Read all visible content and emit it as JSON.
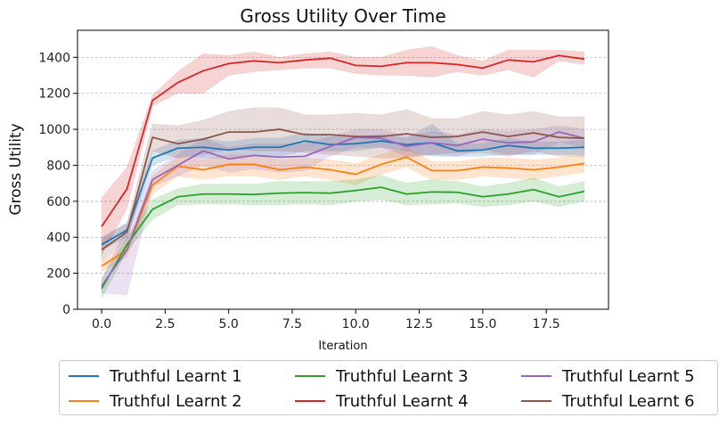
{
  "chart_data": {
    "type": "line",
    "title": "Gross Utility Over Time",
    "xlabel": "Iteration",
    "ylabel": "Gross Utility",
    "xlim": [
      -0.95,
      19.95
    ],
    "ylim": [
      0,
      1550
    ],
    "x_ticks": [
      "0.0",
      "2.5",
      "5.0",
      "7.5",
      "10.0",
      "12.5",
      "15.0",
      "17.5"
    ],
    "x_tick_values": [
      0,
      2.5,
      5,
      7.5,
      10,
      12.5,
      15,
      17.5
    ],
    "y_ticks": [
      "0",
      "200",
      "400",
      "600",
      "800",
      "1000",
      "1200",
      "1400"
    ],
    "y_tick_values": [
      0,
      200,
      400,
      600,
      800,
      1000,
      1200,
      1400
    ],
    "grid": "horizontal dashed",
    "legend_position": "bottom, outside",
    "x": [
      0,
      1,
      2,
      3,
      4,
      5,
      6,
      7,
      8,
      9,
      10,
      11,
      12,
      13,
      14,
      15,
      16,
      17,
      18,
      19
    ],
    "series": [
      {
        "name": "Truthful Learnt 1",
        "color": "#1f77b4",
        "values": [
          360,
          440,
          840,
          895,
          900,
          885,
          900,
          900,
          935,
          915,
          920,
          935,
          915,
          925,
          880,
          885,
          910,
          895,
          895,
          900
        ],
        "lower": [
          330,
          400,
          800,
          850,
          840,
          840,
          850,
          850,
          880,
          880,
          880,
          900,
          880,
          850,
          850,
          850,
          860,
          860,
          860,
          860
        ],
        "upper": [
          400,
          480,
          880,
          940,
          950,
          930,
          950,
          950,
          980,
          960,
          960,
          970,
          950,
          1030,
          920,
          920,
          950,
          930,
          930,
          940
        ]
      },
      {
        "name": "Truthful Learnt 2",
        "color": "#ff7f0e",
        "values": [
          240,
          330,
          690,
          795,
          775,
          805,
          805,
          775,
          790,
          775,
          750,
          805,
          845,
          770,
          770,
          790,
          785,
          775,
          790,
          810
        ],
        "lower": [
          210,
          290,
          640,
          740,
          720,
          740,
          740,
          720,
          740,
          720,
          690,
          750,
          790,
          720,
          720,
          740,
          730,
          720,
          740,
          760
        ],
        "upper": [
          270,
          370,
          740,
          850,
          830,
          860,
          860,
          830,
          840,
          830,
          810,
          860,
          900,
          820,
          820,
          840,
          840,
          830,
          840,
          860
        ]
      },
      {
        "name": "Truthful Learnt 3",
        "color": "#2ca02c",
        "values": [
          115,
          360,
          555,
          625,
          640,
          640,
          638,
          645,
          648,
          645,
          660,
          678,
          640,
          652,
          650,
          625,
          640,
          665,
          625,
          655
        ],
        "lower": [
          60,
          320,
          500,
          580,
          585,
          585,
          580,
          580,
          585,
          580,
          600,
          610,
          580,
          585,
          590,
          570,
          580,
          600,
          570,
          600
        ],
        "upper": [
          170,
          400,
          610,
          670,
          695,
          695,
          695,
          710,
          710,
          710,
          720,
          745,
          700,
          720,
          710,
          680,
          700,
          730,
          680,
          710
        ]
      },
      {
        "name": "Truthful Learnt 4",
        "color": "#d62728",
        "values": [
          460,
          670,
          1160,
          1260,
          1325,
          1365,
          1380,
          1370,
          1385,
          1395,
          1355,
          1350,
          1370,
          1370,
          1360,
          1340,
          1385,
          1375,
          1410,
          1390
        ],
        "lower": [
          300,
          560,
          1130,
          1200,
          1200,
          1300,
          1320,
          1330,
          1340,
          1340,
          1310,
          1300,
          1300,
          1290,
          1320,
          1300,
          1330,
          1290,
          1380,
          1360
        ],
        "upper": [
          620,
          790,
          1190,
          1320,
          1420,
          1410,
          1430,
          1400,
          1420,
          1430,
          1400,
          1400,
          1440,
          1460,
          1410,
          1380,
          1440,
          1440,
          1440,
          1430
        ]
      },
      {
        "name": "Truthful Learnt 5",
        "color": "#9467bd",
        "values": [
          130,
          330,
          720,
          800,
          880,
          835,
          855,
          845,
          850,
          905,
          955,
          950,
          905,
          925,
          910,
          945,
          925,
          930,
          985,
          950
        ],
        "lower": [
          90,
          80,
          680,
          740,
          800,
          760,
          780,
          760,
          770,
          850,
          900,
          900,
          850,
          860,
          850,
          890,
          860,
          860,
          930,
          900
        ],
        "upper": [
          170,
          460,
          770,
          860,
          950,
          900,
          920,
          920,
          920,
          960,
          1000,
          1000,
          960,
          990,
          970,
          1000,
          990,
          1000,
          1020,
          1000
        ]
      },
      {
        "name": "Truthful Learnt 6",
        "color": "#8c564b",
        "values": [
          330,
          430,
          955,
          920,
          945,
          985,
          985,
          1000,
          970,
          970,
          960,
          960,
          975,
          955,
          960,
          985,
          960,
          980,
          955,
          950
        ],
        "lower": [
          270,
          380,
          880,
          840,
          860,
          890,
          880,
          880,
          870,
          860,
          850,
          840,
          840,
          860,
          870,
          870,
          850,
          880,
          850,
          850
        ],
        "upper": [
          390,
          480,
          1030,
          1020,
          1050,
          1100,
          1120,
          1120,
          1080,
          1080,
          1090,
          1080,
          1110,
          1060,
          1060,
          1100,
          1080,
          1100,
          1070,
          1070
        ]
      }
    ]
  }
}
